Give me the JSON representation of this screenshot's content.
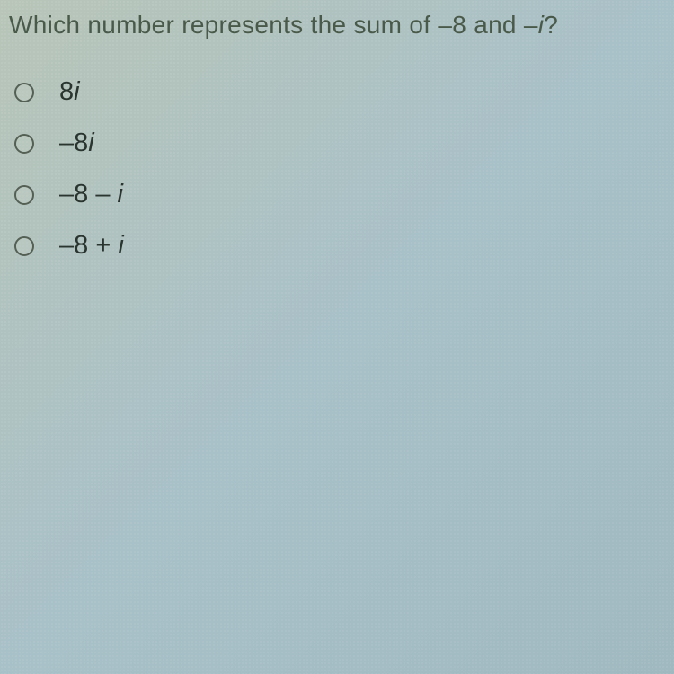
{
  "question": {
    "text": "Which number represents the sum of –8 and –i?",
    "text_color": "#4a5a4a",
    "fontsize": 28
  },
  "options": [
    {
      "prefix": "8",
      "italic_part": "i"
    },
    {
      "prefix": "–8",
      "italic_part": "i"
    },
    {
      "prefix": "–8 – ",
      "italic_part": "i"
    },
    {
      "prefix": "–8 + ",
      "italic_part": "i"
    }
  ],
  "styling": {
    "background_gradient_start": "#b8c5b8",
    "background_gradient_mid": "#a8c0c8",
    "background_gradient_end": "#a0b8c0",
    "radio_border_color": "#556055",
    "option_text_color": "#2a3530",
    "option_fontsize": 29
  }
}
